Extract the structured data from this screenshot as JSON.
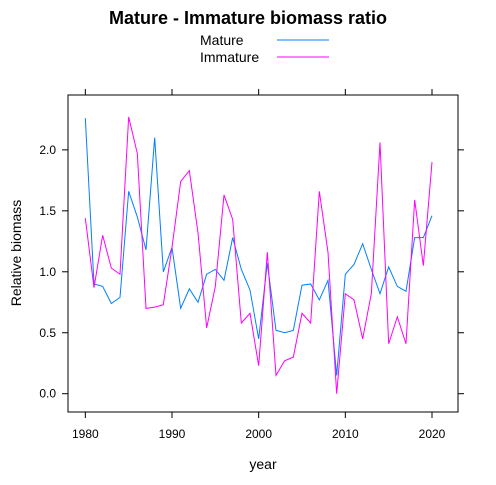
{
  "chart_data": {
    "type": "line",
    "title": "Mature - Immature biomass ratio",
    "xlabel": "year",
    "ylabel": "Relative biomass",
    "xlim": [
      1978,
      2023
    ],
    "ylim": [
      -0.15,
      2.45
    ],
    "xticks": [
      1980,
      1990,
      2000,
      2010,
      2020
    ],
    "yticks": [
      0.0,
      0.5,
      1.0,
      1.5,
      2.0
    ],
    "xtick_labels": [
      "1980",
      "1990",
      "2000",
      "2010",
      "2020"
    ],
    "ytick_labels": [
      "0.0",
      "0.5",
      "1.0",
      "1.5",
      "2.0"
    ],
    "grid": false,
    "legend_position": "top-center",
    "x": [
      1980,
      1981,
      1982,
      1983,
      1984,
      1985,
      1986,
      1987,
      1988,
      1989,
      1990,
      1991,
      1992,
      1993,
      1994,
      1995,
      1996,
      1997,
      1998,
      1999,
      2000,
      2001,
      2002,
      2003,
      2004,
      2005,
      2006,
      2007,
      2008,
      2009,
      2010,
      2011,
      2012,
      2013,
      2014,
      2015,
      2016,
      2017,
      2018,
      2019,
      2020
    ],
    "series": [
      {
        "name": "Mature",
        "color": "#0080ff",
        "values": [
          2.26,
          0.9,
          0.88,
          0.74,
          0.79,
          1.66,
          1.45,
          1.18,
          2.1,
          1.0,
          1.2,
          0.7,
          0.86,
          0.75,
          0.98,
          1.02,
          0.93,
          1.28,
          1.02,
          0.85,
          0.45,
          1.07,
          0.52,
          0.5,
          0.52,
          0.89,
          0.9,
          0.77,
          0.93,
          0.15,
          0.98,
          1.06,
          1.23,
          1.02,
          0.82,
          1.04,
          0.88,
          0.84,
          1.28,
          1.28,
          1.46
        ]
      },
      {
        "name": "Immature",
        "color": "#ff00ff",
        "values": [
          1.44,
          0.87,
          1.3,
          1.03,
          0.98,
          2.27,
          1.97,
          0.7,
          0.71,
          0.73,
          1.2,
          1.74,
          1.83,
          1.32,
          0.54,
          0.88,
          1.63,
          1.43,
          0.58,
          0.66,
          0.23,
          1.16,
          0.15,
          0.27,
          0.3,
          0.66,
          0.58,
          1.66,
          1.16,
          0.0,
          0.82,
          0.77,
          0.45,
          0.82,
          2.06,
          0.41,
          0.63,
          0.41,
          1.59,
          1.05,
          1.9
        ]
      }
    ]
  }
}
